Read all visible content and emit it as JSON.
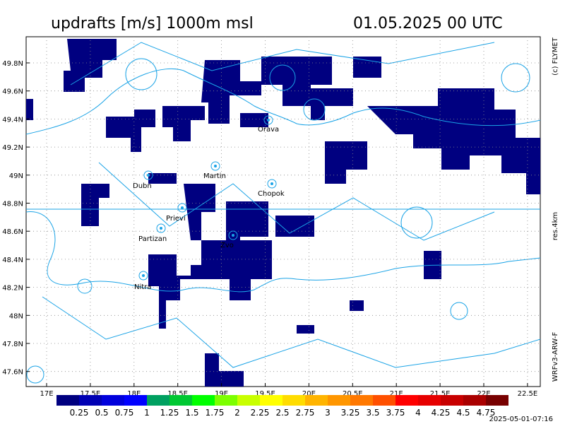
{
  "header": {
    "title": "updrafts [m/s] 1000m msl",
    "time": "01.05.2025 00 UTC"
  },
  "map": {
    "lat_labels": [
      "49.8N",
      "49.6N",
      "49.4N",
      "49.2N",
      "49N",
      "48.8N",
      "48.6N",
      "48.4N",
      "48.2N",
      "48N",
      "47.8N",
      "47.6N"
    ],
    "lon_labels": [
      "17E",
      "17.5E",
      "18E",
      "18.5E",
      "19E",
      "19.5E",
      "20E",
      "20.5E",
      "21E",
      "21.5E",
      "22E",
      "22.5E"
    ],
    "places": [
      "Orava",
      "Martin",
      "Dubn",
      "Chopok",
      "Prievi",
      "Partizan",
      "Zvo",
      "Nitra"
    ]
  },
  "legend": {
    "colors": [
      "#000080",
      "#0000b4",
      "#0000dc",
      "#0000ff",
      "#00a060",
      "#00c832",
      "#00ff00",
      "#7cff00",
      "#c8ff00",
      "#ffff00",
      "#ffdc00",
      "#ffb400",
      "#ff9600",
      "#ff7800",
      "#ff5000",
      "#ff0000",
      "#e60000",
      "#c80000",
      "#aa0000",
      "#780000"
    ],
    "labels": [
      "0.25",
      "0.5",
      "0.75",
      "1",
      "1.25",
      "1.5",
      "1.75",
      "2",
      "2.25",
      "2.5",
      "2.75",
      "3",
      "3.25",
      "3.5",
      "3.75",
      "4",
      "4.25",
      "4.5",
      "4.75"
    ]
  },
  "side": {
    "copyright": "(c) FLYMET",
    "resolution": "res.4km",
    "model": "WRFv3-ARW-F"
  },
  "footer": {
    "timestamp": "2025-05-01-07:16"
  }
}
